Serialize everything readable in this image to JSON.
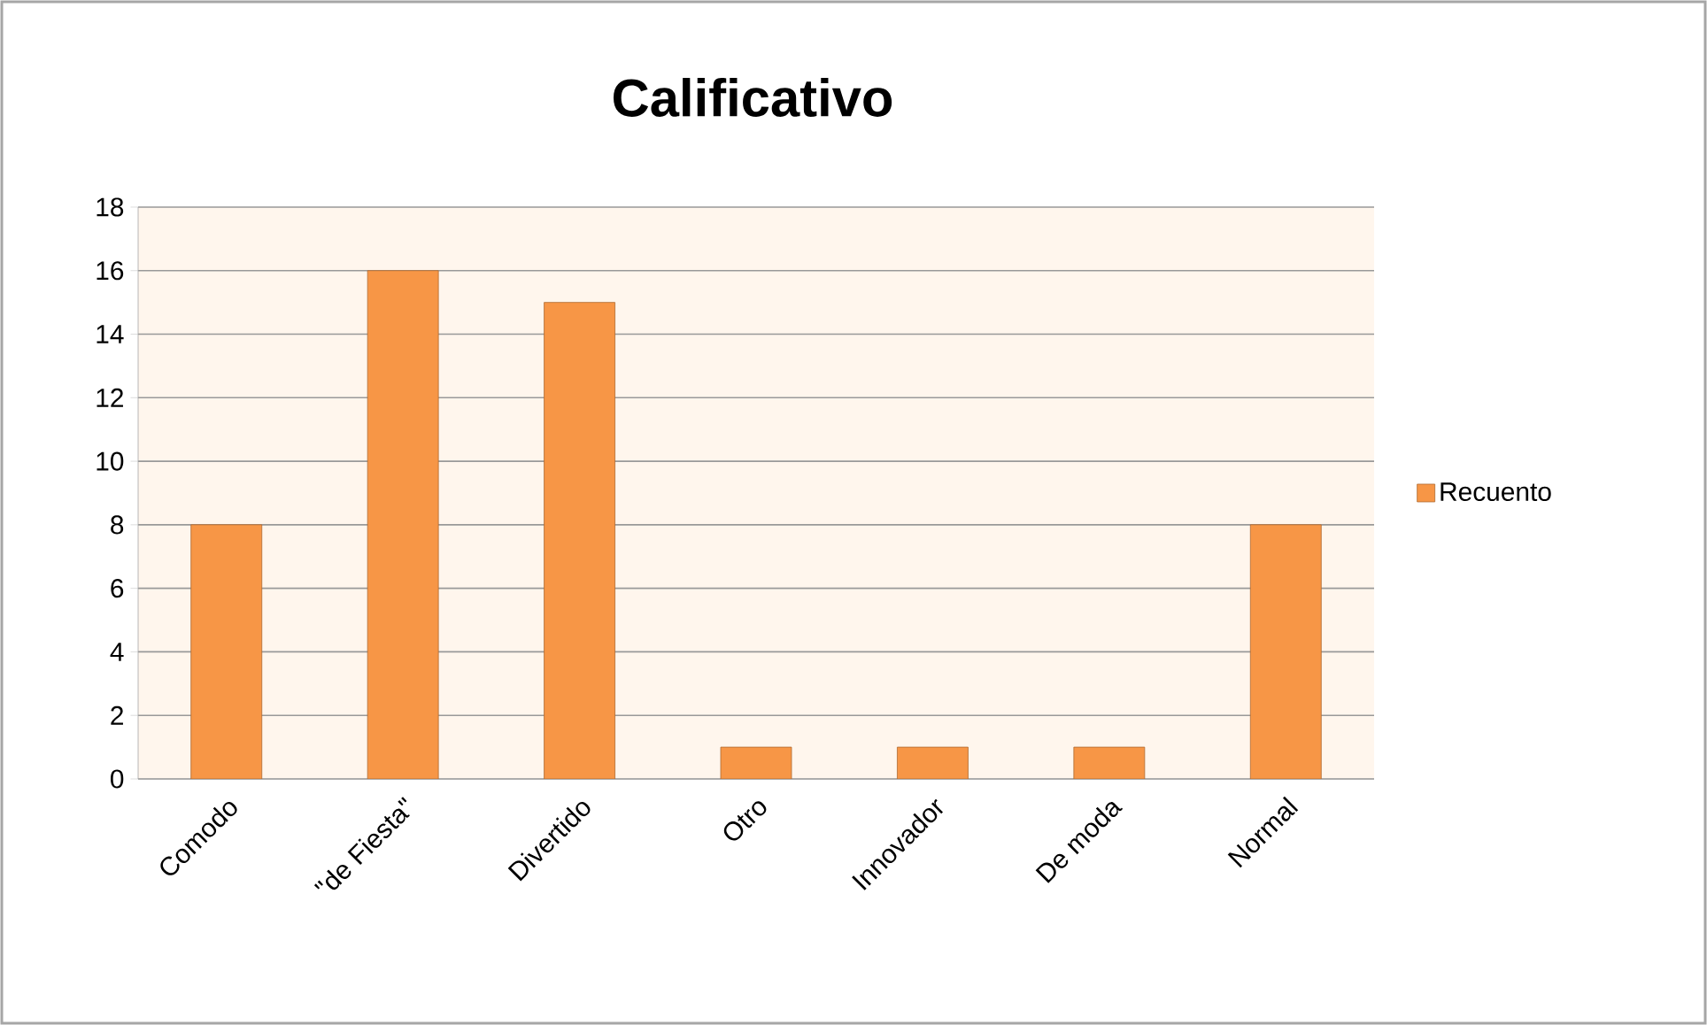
{
  "chart_data": {
    "type": "bar",
    "title": "Calificativo",
    "categories": [
      "Comodo",
      "\"de Fiesta\"",
      "Divertido",
      "Otro",
      "Innovador",
      "De moda",
      "Normal"
    ],
    "series": [
      {
        "name": "Recuento",
        "color": "#f79646",
        "values": [
          8,
          16,
          15,
          1,
          1,
          1,
          8
        ]
      }
    ],
    "ylim": [
      0,
      18
    ],
    "yticks": [
      0,
      2,
      4,
      6,
      8,
      10,
      12,
      14,
      16,
      18
    ],
    "grid": "y",
    "legend": "right"
  }
}
